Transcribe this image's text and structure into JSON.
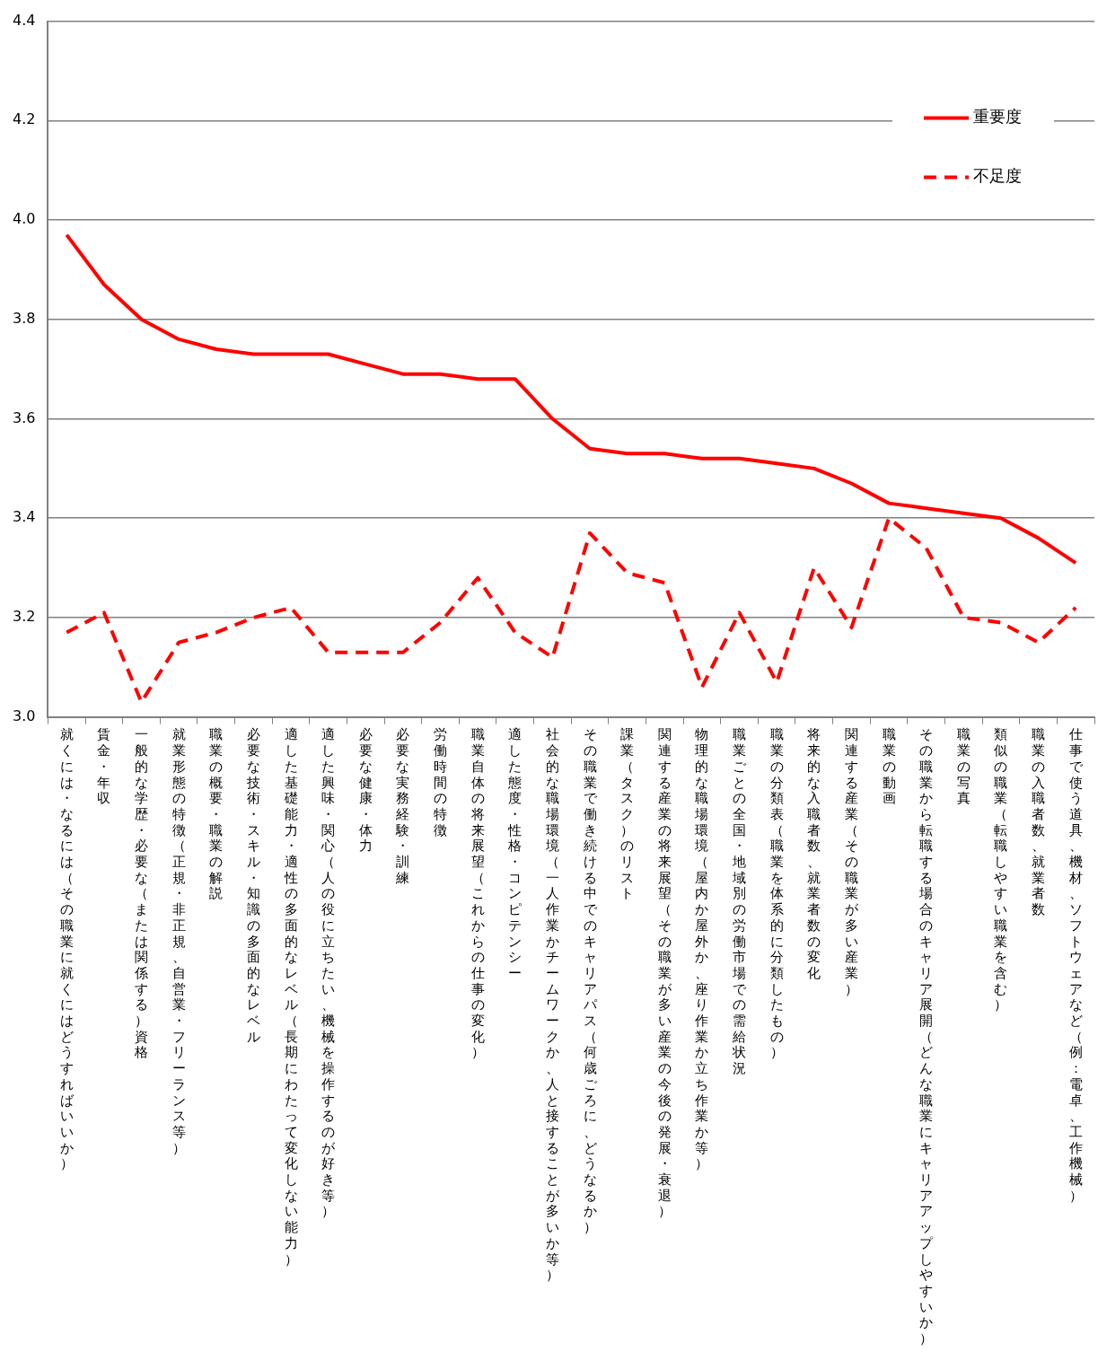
{
  "chart_data": {
    "type": "line",
    "categories": [
      "就くには・なるには（その職業に就くにはどうすればいいか）",
      "賃金・年収",
      "一般的な学歴・必要な（または関係する）資格",
      "就業形態の特徴（正規・非正規、自営業・フリーランス等）",
      "職業の概要・職業の解説",
      "必要な技術・スキル・知識の多面的なレベル",
      "適した基礎能力・適性の多面的なレベル（長期にわたって変化しない能力）",
      "適した興味・関心（人の役に立ちたい、機械を操作するのが好き等）",
      "必要な健康・体力",
      "必要な実務経験・訓練",
      "労働時間の特徴",
      "職業自体の将来展望（これからの仕事の変化）",
      "適した態度・性格・コンピテンシー",
      "社会的な職場環境（一人作業かチームワークか、人と接することが多いか等）",
      "その職業で働き続ける中でのキャリアパス（何歳ごろに、どうなるか）",
      "課業（タスク）のリスト",
      "関連する産業の将来展望（その職業が多い産業の今後の発展・衰退）",
      "物理的な職場環境（屋内か屋外か、座り作業か立ち作業か等）",
      "職業ごとの全国・地域別の労働市場での需給状況",
      "職業の分類表（職業を体系的に分類したもの）",
      "将来的な入職者数、就業者数の変化",
      "関連する産業（その職業が多い産業）",
      "職業の動画",
      "その職業から転職する場合のキャリア展開（どんな職業にキャリアアップしやすいか）",
      "職業の写真",
      "類似の職業（転職しやすい職業を含む）",
      "職業の入職者数、就業者数",
      "仕事で使う道具、機材、ソフトウェアなど（例：電卓、工作機械）"
    ],
    "series": [
      {
        "name": "重要度",
        "color": "#ff0000",
        "line_style": "solid",
        "values": [
          3.97,
          3.87,
          3.8,
          3.76,
          3.74,
          3.73,
          3.73,
          3.73,
          3.71,
          3.69,
          3.69,
          3.68,
          3.68,
          3.6,
          3.54,
          3.53,
          3.53,
          3.52,
          3.52,
          3.51,
          3.5,
          3.47,
          3.43,
          3.42,
          3.41,
          3.4,
          3.36,
          3.31
        ]
      },
      {
        "name": "不足度",
        "color": "#ff0000",
        "line_style": "dashed",
        "values": [
          3.17,
          3.21,
          3.03,
          3.15,
          3.17,
          3.2,
          3.22,
          3.13,
          3.13,
          3.13,
          3.19,
          3.28,
          3.17,
          3.12,
          3.37,
          3.29,
          3.27,
          3.06,
          3.21,
          3.07,
          3.3,
          3.18,
          3.4,
          3.34,
          3.2,
          3.19,
          3.15,
          3.22
        ]
      }
    ],
    "ylim": [
      3.0,
      4.4
    ],
    "yticks": [
      {
        "value": 3,
        "label": "3.0"
      },
      3.2,
      3.4,
      3.6,
      3.8,
      {
        "value": 4,
        "label": "4.0"
      },
      4.2,
      4.4
    ],
    "grid": "y",
    "legend": "top right",
    "marker": "none"
  }
}
